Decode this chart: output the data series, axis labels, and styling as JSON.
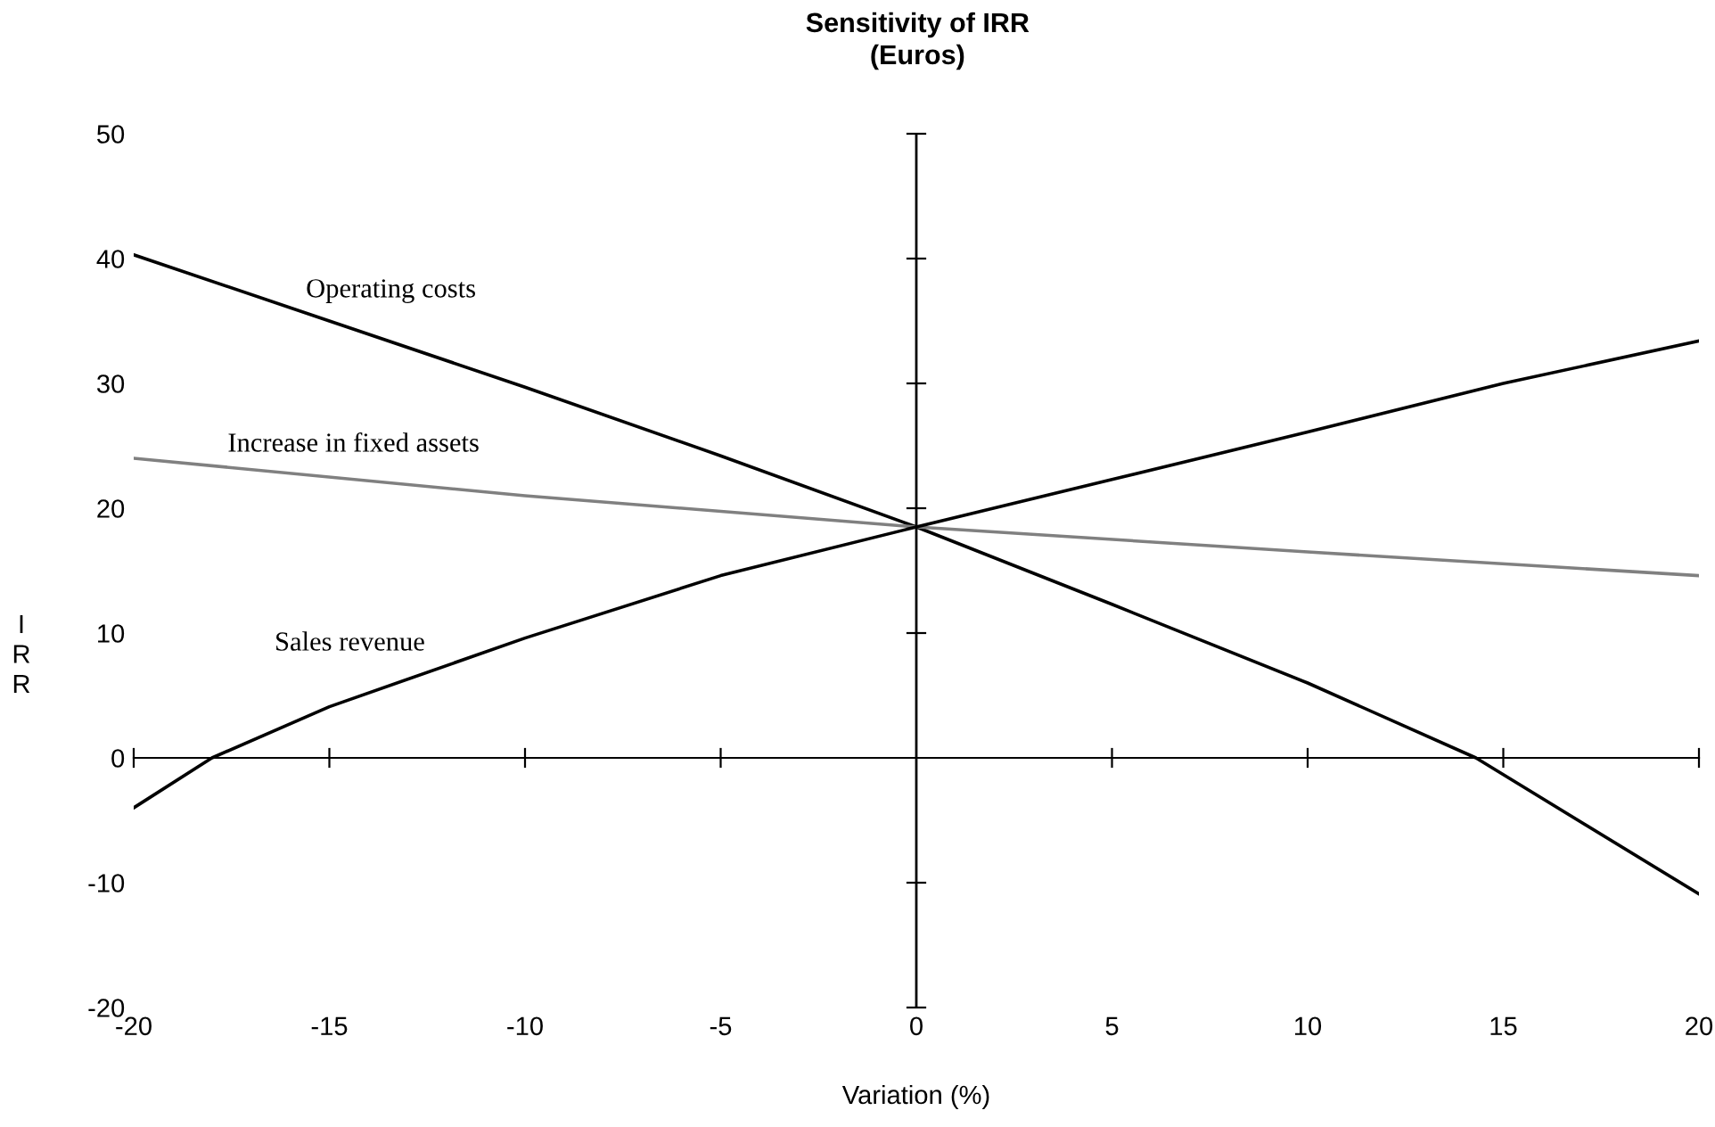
{
  "chart_data": {
    "type": "line",
    "title": "Sensitivity of IRR",
    "subtitle": "(Euros)",
    "xlabel": "Variation (%)",
    "ylabel": "IRR",
    "series": [
      {
        "name": "Operating costs",
        "color": "#000000",
        "x": [
          -20,
          -15,
          -10,
          -5,
          0,
          5,
          10,
          14.3,
          20
        ],
        "values": [
          40.3,
          35,
          29.7,
          24.2,
          18.5,
          12.3,
          6,
          0,
          -10.9
        ]
      },
      {
        "name": "Increase in fixed assets",
        "color": "#808080",
        "x": [
          -20,
          -10,
          0,
          10,
          20
        ],
        "values": [
          24,
          21,
          18.5,
          16.5,
          14.6
        ]
      },
      {
        "name": "Sales revenue",
        "color": "#000000",
        "x": [
          -20,
          -18,
          -15,
          -10,
          -5,
          0,
          5,
          10,
          15,
          20
        ],
        "values": [
          -4,
          0,
          4.1,
          9.6,
          14.6,
          18.5,
          22.3,
          26.1,
          30,
          33.4
        ]
      }
    ],
    "ref_lines": [
      {
        "axis": "x",
        "value": 0
      }
    ],
    "xlim": [
      -20,
      20
    ],
    "ylim": [
      -20,
      50
    ],
    "xticks": [
      -20,
      -15,
      -10,
      -5,
      0,
      5,
      10,
      15,
      20
    ],
    "yticks": [
      -20,
      -10,
      0,
      10,
      20,
      30,
      40,
      50
    ],
    "grid": false,
    "legend": false,
    "marker": "none",
    "line_style": "solid"
  }
}
